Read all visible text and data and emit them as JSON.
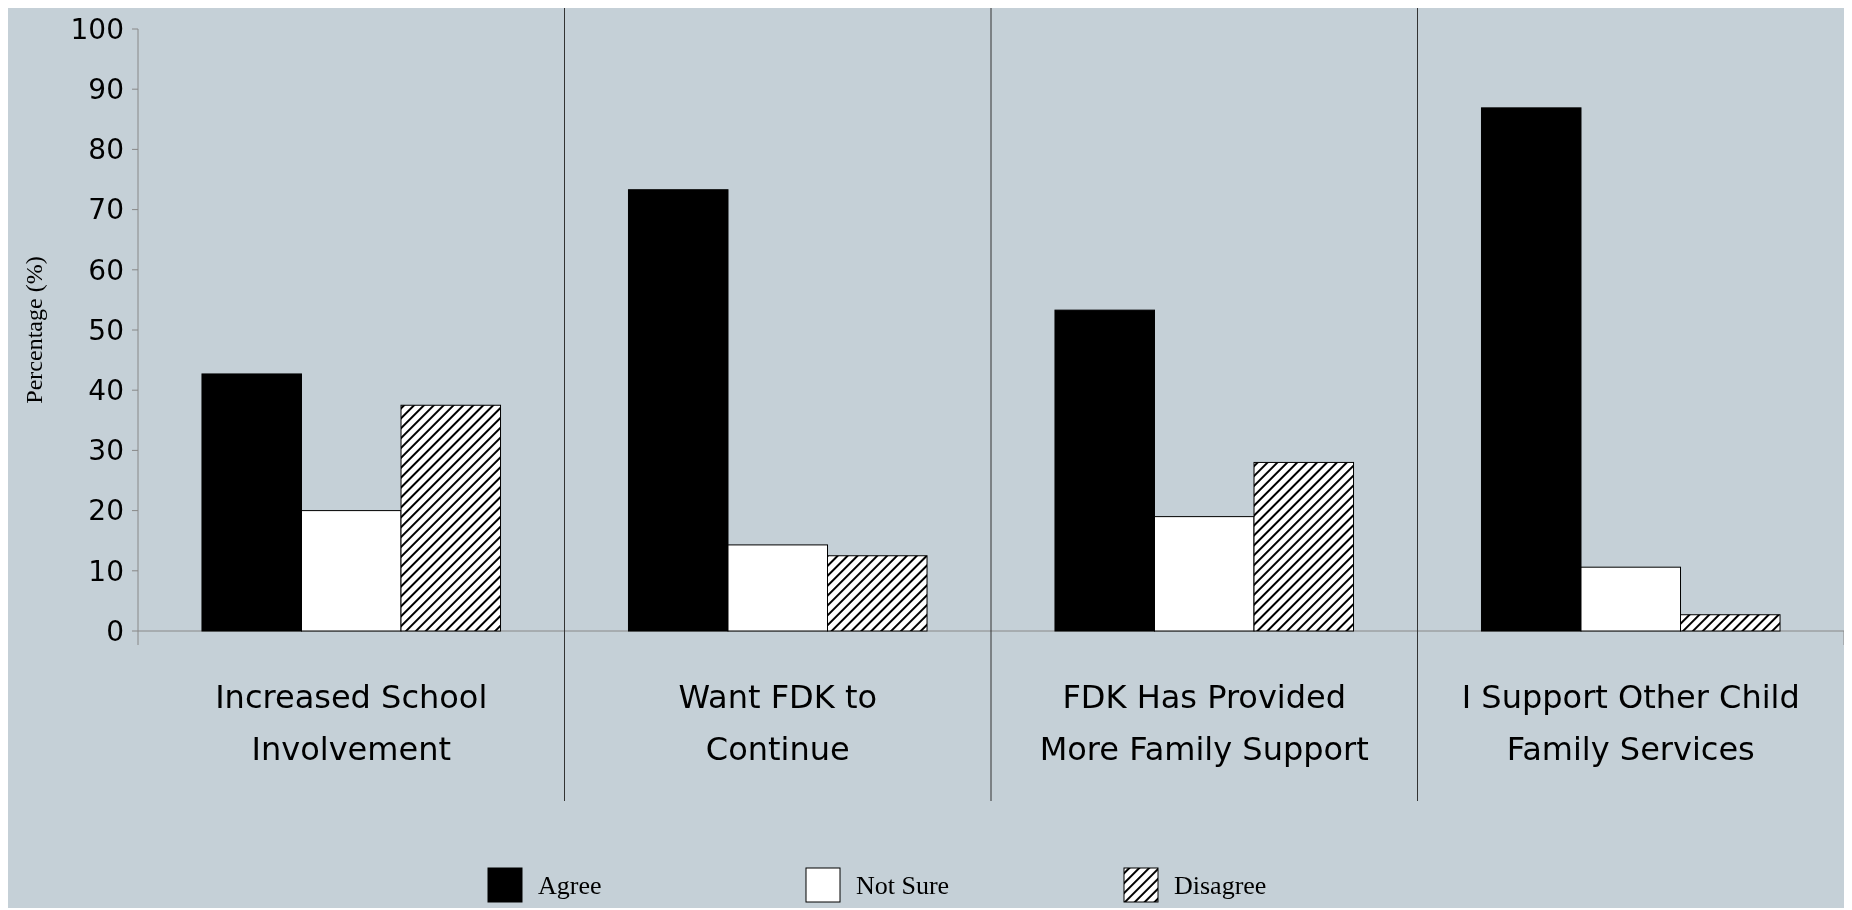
{
  "chart_data": {
    "type": "bar",
    "ylabel": "Percentage (%)",
    "categories": [
      "Increased School Involvement",
      "Want FDK to Continue",
      "FDK Has Provided More Family Support",
      "I Support Other Child Family Services"
    ],
    "series": [
      {
        "name": "Agree",
        "color": "#000000",
        "values": [
          42.7,
          73.3,
          53.3,
          86.9
        ]
      },
      {
        "name": "Not Sure",
        "color": "#ffffff",
        "values": [
          20,
          14.3,
          19,
          10.6
        ]
      },
      {
        "name": "Disagree",
        "color": "#000000",
        "values": [
          37.5,
          12.5,
          28,
          2.7
        ]
      }
    ],
    "ylim": [
      0,
      100
    ],
    "yticks": [
      0,
      10,
      20,
      30,
      40,
      50,
      60,
      70,
      80,
      90,
      100
    ],
    "grid": false,
    "legend": "bottom"
  }
}
